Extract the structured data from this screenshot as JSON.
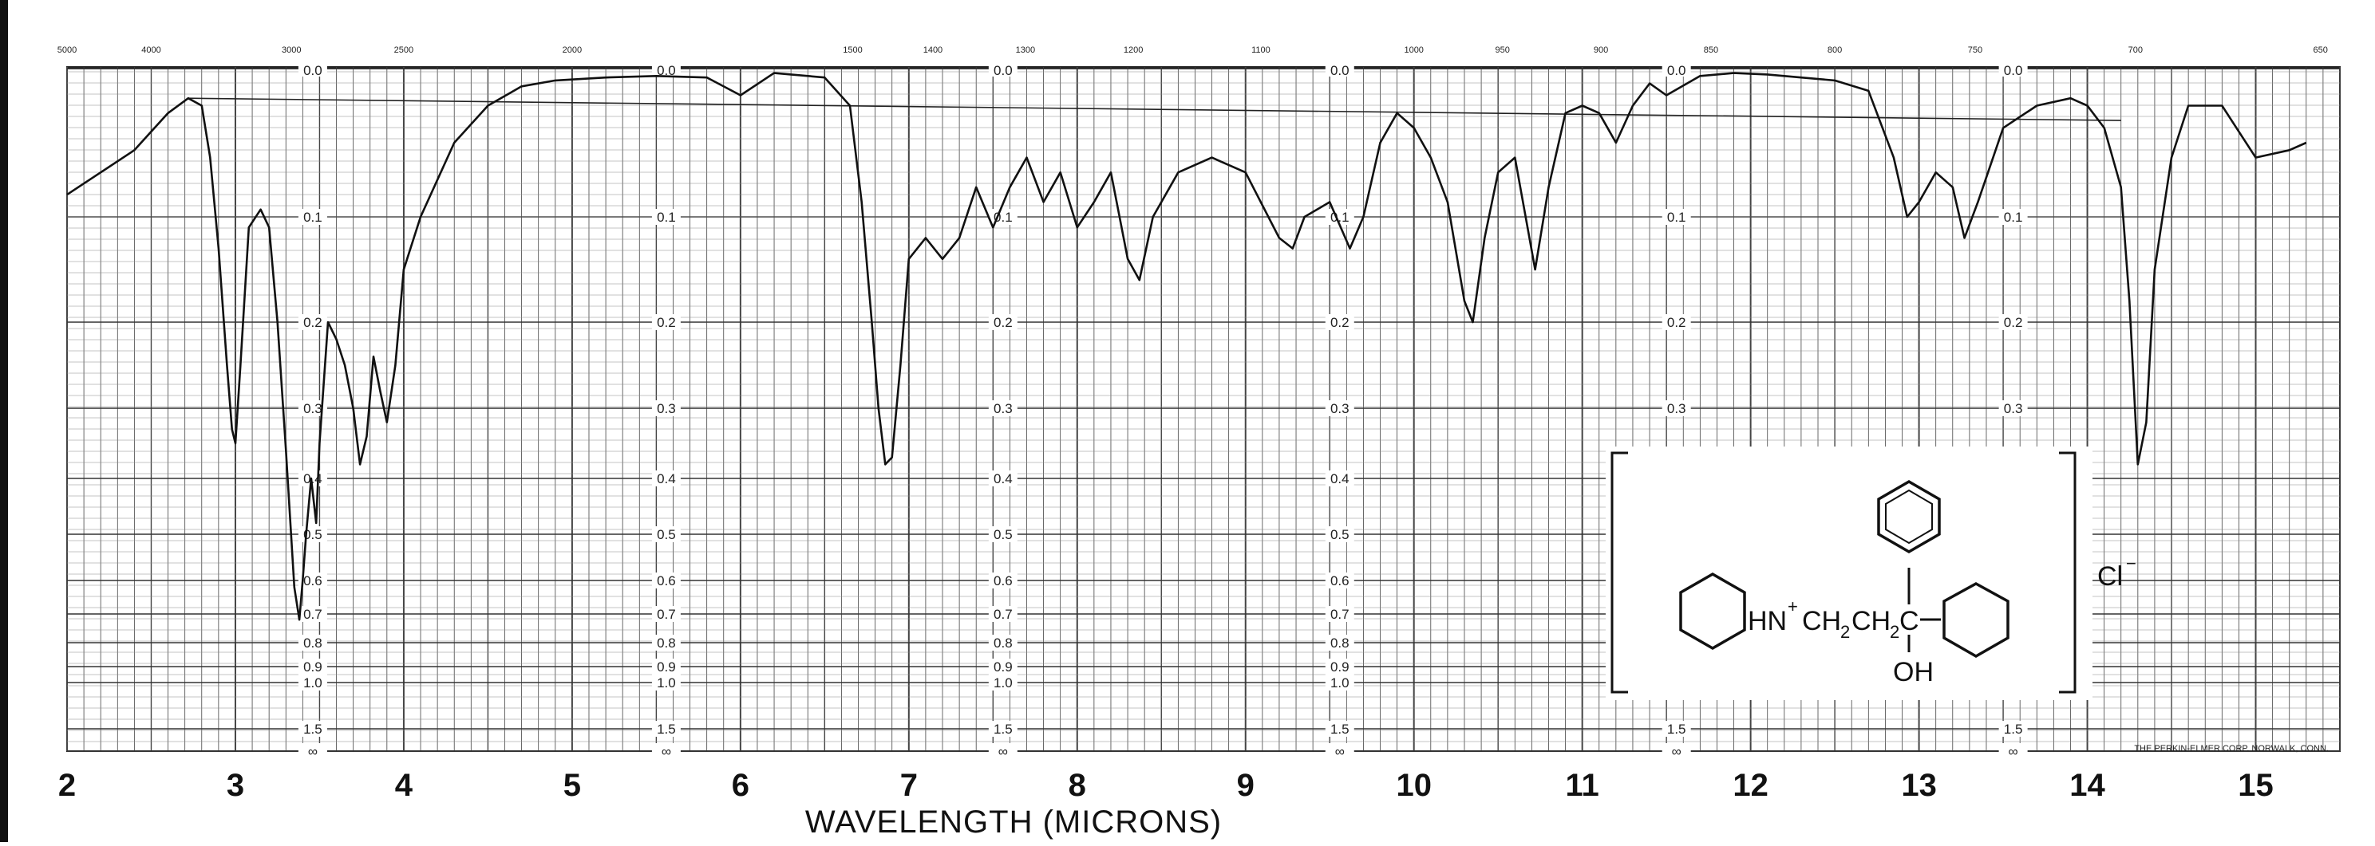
{
  "chart_data": {
    "type": "line",
    "title": "",
    "xlabel": "WAVELENGTH (MICRONS)",
    "ylabel": "",
    "x_ticks_microns": [
      "2",
      "3",
      "4",
      "5",
      "6",
      "7",
      "8",
      "9",
      "10",
      "11",
      "12",
      "13",
      "14",
      "15"
    ],
    "x_ticks_wavenumber": [
      "5000",
      "4000",
      "3000",
      "2500",
      "2000",
      "1500",
      "1400",
      "1300",
      "1200",
      "1100",
      "1000",
      "950",
      "900",
      "850",
      "800",
      "750",
      "700",
      "650"
    ],
    "absorbance_ticks": [
      "0.0",
      "0.1",
      "0.2",
      "0.3",
      "0.4",
      "0.5",
      "0.6",
      "0.7",
      "0.8",
      "0.9",
      "1.0",
      "1.5",
      "∞"
    ],
    "xlim": [
      2,
      15.5
    ],
    "ylim_absorbance": [
      0,
      1.5
    ],
    "series": [
      {
        "x": [
          2.0,
          2.2,
          2.4,
          2.6,
          2.72,
          2.8,
          2.85,
          2.9,
          2.95,
          2.98,
          3.0,
          3.03,
          3.08,
          3.15,
          3.2,
          3.25,
          3.3,
          3.35,
          3.38,
          3.4,
          3.42,
          3.45,
          3.48,
          3.5,
          3.55,
          3.6,
          3.65,
          3.7,
          3.74,
          3.78,
          3.82,
          3.86,
          3.9,
          3.95,
          4.0,
          4.1,
          4.3,
          4.5,
          4.7,
          4.9,
          5.2,
          5.5,
          5.8,
          6.0,
          6.2,
          6.3,
          6.5,
          6.65,
          6.72,
          6.78,
          6.82,
          6.86,
          6.9,
          6.95,
          7.0,
          7.1,
          7.2,
          7.3,
          7.4,
          7.5,
          7.6,
          7.7,
          7.8,
          7.9,
          8.0,
          8.1,
          8.2,
          8.3,
          8.37,
          8.45,
          8.6,
          8.8,
          9.0,
          9.2,
          9.28,
          9.35,
          9.5,
          9.62,
          9.7,
          9.8,
          9.9,
          10.0,
          10.1,
          10.2,
          10.3,
          10.35,
          10.42,
          10.5,
          10.6,
          10.72,
          10.8,
          10.9,
          11.0,
          11.1,
          11.2,
          11.3,
          11.4,
          11.5,
          11.7,
          11.9,
          12.1,
          12.3,
          12.5,
          12.7,
          12.85,
          12.93,
          13.0,
          13.1,
          13.2,
          13.27,
          13.35,
          13.5,
          13.7,
          13.9,
          14.0,
          14.1,
          14.2,
          14.25,
          14.3,
          14.35,
          14.4,
          14.5,
          14.6,
          14.8,
          15.0,
          15.2,
          15.3
        ],
        "y": [
          0.085,
          0.07,
          0.055,
          0.03,
          0.02,
          0.025,
          0.06,
          0.13,
          0.25,
          0.33,
          0.35,
          0.25,
          0.11,
          0.095,
          0.11,
          0.2,
          0.36,
          0.62,
          0.72,
          0.6,
          0.5,
          0.4,
          0.48,
          0.35,
          0.2,
          0.22,
          0.25,
          0.3,
          0.38,
          0.34,
          0.24,
          0.28,
          0.32,
          0.25,
          0.15,
          0.1,
          0.05,
          0.025,
          0.012,
          0.008,
          0.006,
          0.005,
          0.006,
          0.018,
          0.003,
          0.004,
          0.006,
          0.025,
          0.09,
          0.2,
          0.3,
          0.38,
          0.37,
          0.25,
          0.14,
          0.12,
          0.14,
          0.12,
          0.08,
          0.11,
          0.08,
          0.06,
          0.09,
          0.07,
          0.11,
          0.09,
          0.07,
          0.14,
          0.16,
          0.1,
          0.07,
          0.06,
          0.07,
          0.12,
          0.13,
          0.1,
          0.09,
          0.13,
          0.1,
          0.05,
          0.03,
          0.04,
          0.06,
          0.09,
          0.18,
          0.2,
          0.12,
          0.07,
          0.06,
          0.15,
          0.08,
          0.03,
          0.025,
          0.03,
          0.05,
          0.025,
          0.01,
          0.018,
          0.005,
          0.003,
          0.004,
          0.006,
          0.008,
          0.015,
          0.06,
          0.1,
          0.09,
          0.07,
          0.08,
          0.12,
          0.09,
          0.04,
          0.025,
          0.02,
          0.025,
          0.04,
          0.08,
          0.18,
          0.38,
          0.32,
          0.15,
          0.06,
          0.025,
          0.025,
          0.06,
          0.055,
          0.05
        ]
      }
    ],
    "background_line": {
      "x": [
        2.72,
        14.2
      ],
      "y": [
        0.02,
        0.035
      ]
    }
  },
  "structure": {
    "cation_text": "HN",
    "charge": "+",
    "chain_text_1": "CH",
    "chain_sub_1": "2",
    "chain_text_2": "CH",
    "chain_sub_2": "2",
    "carbon": "C",
    "hydroxyl": "OH",
    "anion": "Cl",
    "anion_charge": "−"
  },
  "credit": "THE PERKIN-ELMER CORP. NORWALK, CONN."
}
